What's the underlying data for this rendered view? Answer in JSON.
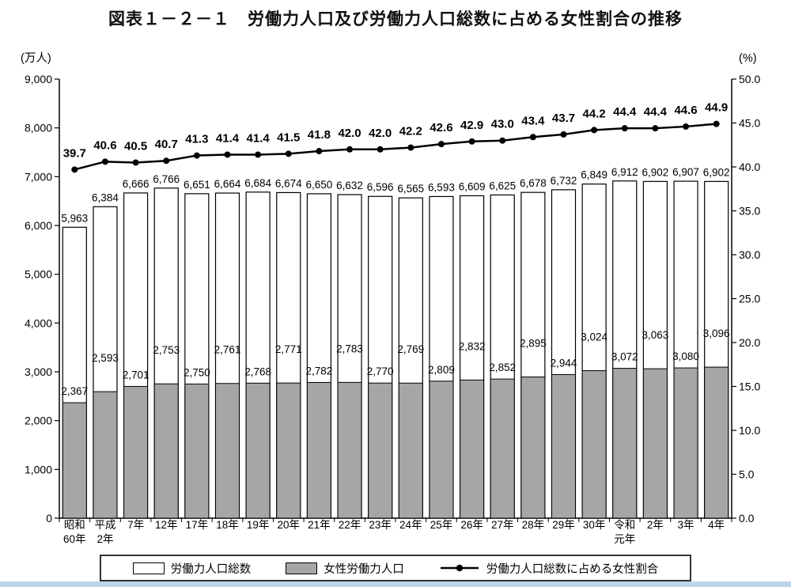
{
  "title": "図表１－２－１　労働力人口及び労働力人口総数に占める女性割合の推移",
  "axes": {
    "left_unit": "(万人)",
    "right_unit": "(%)"
  },
  "chart_data": {
    "type": "bar",
    "subtype": "overlaid-bars-with-line",
    "categories": [
      [
        "昭和",
        "60年"
      ],
      [
        "平成",
        "2年"
      ],
      "7年",
      "12年",
      "17年",
      "18年",
      "19年",
      "20年",
      "21年",
      "22年",
      "23年",
      "24年",
      "25年",
      "26年",
      "27年",
      "28年",
      "29年",
      "30年",
      [
        "令和",
        "元年"
      ],
      "2年",
      "3年",
      "4年"
    ],
    "series": [
      {
        "name": "労働力人口総数",
        "type": "bar",
        "axis": "left",
        "values": [
          5963,
          6384,
          6666,
          6766,
          6651,
          6664,
          6684,
          6674,
          6650,
          6632,
          6596,
          6565,
          6593,
          6609,
          6625,
          6678,
          6732,
          6849,
          6912,
          6902,
          6907,
          6902
        ]
      },
      {
        "name": "女性労働力人口",
        "type": "bar",
        "axis": "left",
        "values": [
          2367,
          2593,
          2701,
          2753,
          2750,
          2761,
          2768,
          2771,
          2782,
          2783,
          2770,
          2769,
          2809,
          2832,
          2852,
          2895,
          2944,
          3024,
          3072,
          3063,
          3080,
          3096
        ]
      },
      {
        "name": "労働力人口総数に占める女性割合",
        "type": "line",
        "axis": "right",
        "values": [
          39.7,
          40.6,
          40.5,
          40.7,
          41.3,
          41.4,
          41.4,
          41.5,
          41.8,
          42.0,
          42.0,
          42.2,
          42.6,
          42.9,
          43.0,
          43.4,
          43.7,
          44.2,
          44.4,
          44.4,
          44.6,
          44.9
        ]
      }
    ],
    "y_left": {
      "min": 0,
      "max": 9000,
      "step": 1000,
      "unit": "(万人)"
    },
    "y_right": {
      "min": 0,
      "max": 50,
      "step": 5,
      "unit": "(%)"
    },
    "grid": false,
    "legend_position": "bottom"
  },
  "legend": {
    "items": [
      "労働力人口総数",
      "女性労働力人口",
      "労働力人口総数に占める女性割合"
    ]
  },
  "colors": {
    "bar_total_fill": "#ffffff",
    "bar_female_fill": "#a6a6a6",
    "bar_stroke": "#000000",
    "line": "#000000",
    "axis": "#000000",
    "bottom_strip": "#bfd5e9"
  }
}
